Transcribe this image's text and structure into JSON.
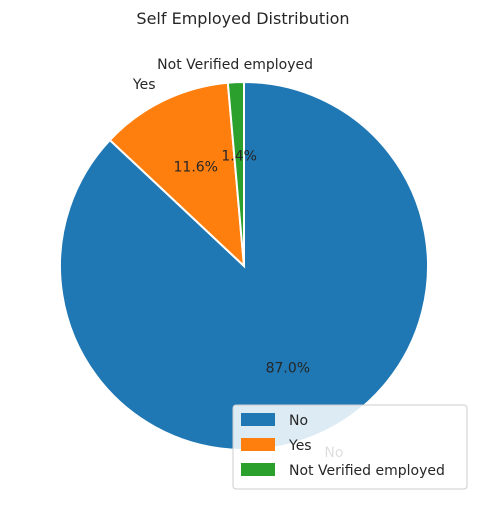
{
  "chart_data": {
    "type": "pie",
    "title": "Self Employed Distribution",
    "categories": [
      "No",
      "Yes",
      "Not Verified employed"
    ],
    "values": [
      87.0,
      11.6,
      1.4
    ],
    "percent_labels": [
      "87.0%",
      "11.6%",
      "1.4%"
    ],
    "colors": [
      "#1f77b4",
      "#ff7f0e",
      "#2ca02c"
    ],
    "start_angle_deg": 90,
    "direction": "clockwise",
    "legend": {
      "placement": "lower-right",
      "entries": [
        "No",
        "Yes",
        "Not Verified employed"
      ]
    }
  }
}
